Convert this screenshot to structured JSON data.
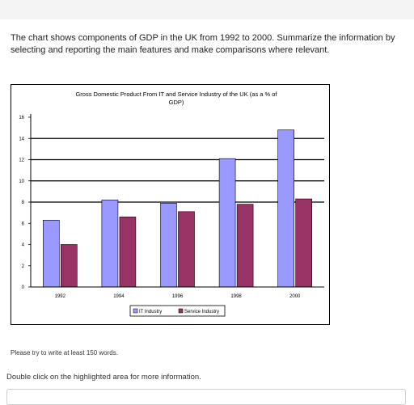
{
  "task": {
    "prompt": "The chart shows components of GDP in the UK from 1992 to 2000. Summarize the information by selecting and reporting the main features and make comparisons where relevant.",
    "instruction": "Please try to write at least 150 words.",
    "hint": "Double click on the highlighted area for more information."
  },
  "colors": {
    "it": "#9999ff",
    "service": "#993366",
    "frame": "#000000"
  },
  "chart_data": {
    "type": "bar",
    "title_line1": "Gross Domestic Product From IT and Service Industry of the UK (as a % of",
    "title_line2": "GDP)",
    "categories": [
      "1992",
      "1994",
      "1996",
      "1998",
      "2000"
    ],
    "series": [
      {
        "name": "IT Industry",
        "values": [
          6.3,
          8.2,
          7.9,
          12.1,
          14.8
        ]
      },
      {
        "name": "Service Industry",
        "values": [
          4.0,
          6.6,
          7.1,
          7.8,
          8.3
        ]
      }
    ],
    "yticks": [
      "0",
      "2",
      "4",
      "6",
      "8",
      "10",
      "12",
      "14",
      "16"
    ],
    "ylim": [
      0,
      16
    ],
    "gridlines": [
      8,
      10,
      12,
      14
    ],
    "legend_position": "bottom"
  }
}
